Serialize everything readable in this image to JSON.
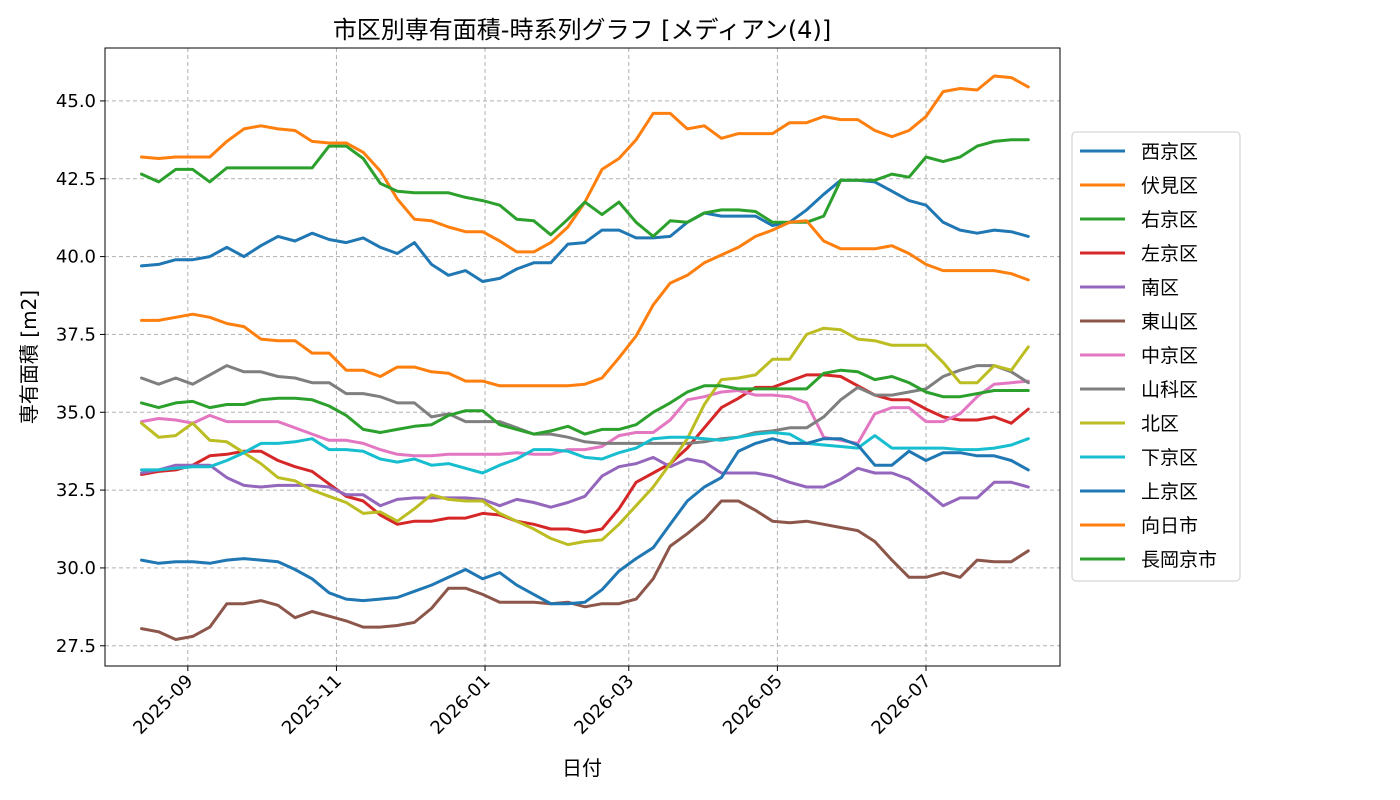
{
  "chart_data": {
    "type": "line",
    "title": "市区別専有面積-時系列グラフ [メディアン(4)]",
    "xlabel": "日付",
    "ylabel": "専有面積 [m2]",
    "ylim": [
      26.85,
      46.7
    ],
    "xlim": [
      "2025-07-29",
      "2026-08-25"
    ],
    "yticks": [
      27.5,
      30.0,
      32.5,
      35.0,
      37.5,
      40.0,
      42.5,
      45.0
    ],
    "ytick_labels": [
      "27.5",
      "30.0",
      "32.5",
      "35.0",
      "37.5",
      "40.0",
      "42.5",
      "45.0"
    ],
    "xticks": [
      "2025-09-01",
      "2025-11-01",
      "2026-01-01",
      "2026-03-01",
      "2026-05-01",
      "2026-07-01"
    ],
    "xtick_labels": [
      "2025-09",
      "2025-11",
      "2026-01",
      "2026-03",
      "2026-05",
      "2026-07"
    ],
    "grid": true,
    "legend_position": "outside-right",
    "x": [
      "2025-08-13",
      "2025-08-20",
      "2025-08-27",
      "2025-09-03",
      "2025-09-10",
      "2025-09-17",
      "2025-09-24",
      "2025-10-01",
      "2025-10-08",
      "2025-10-15",
      "2025-10-22",
      "2025-10-29",
      "2025-11-05",
      "2025-11-12",
      "2025-11-19",
      "2025-11-26",
      "2025-12-03",
      "2025-12-10",
      "2025-12-17",
      "2025-12-24",
      "2025-12-31",
      "2026-01-07",
      "2026-01-14",
      "2026-01-21",
      "2026-01-28",
      "2026-02-04",
      "2026-02-11",
      "2026-02-18",
      "2026-02-25",
      "2026-03-04",
      "2026-03-11",
      "2026-03-18",
      "2026-03-25",
      "2026-04-01",
      "2026-04-08",
      "2026-04-15",
      "2026-04-22",
      "2026-04-29",
      "2026-05-06",
      "2026-05-13",
      "2026-05-20",
      "2026-05-27",
      "2026-06-03",
      "2026-06-10",
      "2026-06-17",
      "2026-06-24",
      "2026-07-01",
      "2026-07-08",
      "2026-07-15",
      "2026-07-22",
      "2026-07-29",
      "2026-08-05",
      "2026-08-12"
    ],
    "series": [
      {
        "name": "西京区",
        "color": "#1f77b4",
        "values": [
          39.7,
          39.75,
          39.9,
          39.9,
          40.0,
          40.3,
          40.0,
          40.35,
          40.65,
          40.5,
          40.75,
          40.55,
          40.45,
          40.6,
          40.3,
          40.1,
          40.45,
          39.75,
          39.4,
          39.55,
          39.2,
          39.3,
          39.6,
          39.8,
          39.8,
          40.4,
          40.45,
          40.85,
          40.85,
          40.6,
          40.6,
          40.65,
          41.1,
          41.4,
          41.3,
          41.3,
          41.3,
          41.0,
          41.1,
          41.5,
          42.0,
          42.45,
          42.45,
          42.4,
          42.1,
          41.8,
          41.65,
          41.1,
          40.85,
          40.75,
          40.85,
          40.8,
          40.65
        ]
      },
      {
        "name": "伏見区",
        "color": "#ff7f0e",
        "values": [
          43.2,
          43.15,
          43.2,
          43.2,
          43.2,
          43.7,
          44.1,
          44.2,
          44.1,
          44.05,
          43.7,
          43.65,
          43.65,
          43.35,
          42.75,
          41.85,
          41.2,
          41.15,
          40.95,
          40.8,
          40.8,
          40.5,
          40.15,
          40.15,
          40.45,
          40.95,
          41.75,
          42.8,
          43.15,
          43.75,
          44.6,
          44.6,
          44.1,
          44.2,
          43.8,
          43.95,
          43.95,
          43.95,
          44.3,
          44.3,
          44.5,
          44.4,
          44.4,
          44.05,
          43.85,
          44.05,
          44.5,
          45.3,
          45.4,
          45.35,
          45.8,
          45.75,
          45.45
        ]
      },
      {
        "name": "右京区",
        "color": "#2ca02c",
        "values": [
          42.65,
          42.4,
          42.8,
          42.8,
          42.4,
          42.85,
          42.85,
          42.85,
          42.85,
          42.85,
          42.85,
          43.55,
          43.55,
          43.15,
          42.35,
          42.1,
          42.05,
          42.05,
          42.05,
          41.9,
          41.8,
          41.65,
          41.2,
          41.15,
          40.7,
          41.2,
          41.75,
          41.35,
          41.75,
          41.1,
          40.65,
          41.15,
          41.1,
          41.4,
          41.5,
          41.5,
          41.45,
          41.1,
          41.1,
          41.1,
          41.3,
          42.45,
          42.45,
          42.45,
          42.65,
          42.55,
          43.2,
          43.05,
          43.2,
          43.55,
          43.7,
          43.75,
          43.75
        ]
      },
      {
        "name": "左京区",
        "color": "#d62728",
        "values": [
          33.0,
          33.1,
          33.15,
          33.3,
          33.6,
          33.65,
          33.75,
          33.75,
          33.45,
          33.25,
          33.1,
          32.7,
          32.3,
          32.15,
          31.7,
          31.4,
          31.5,
          31.5,
          31.6,
          31.6,
          31.75,
          31.7,
          31.5,
          31.4,
          31.25,
          31.25,
          31.15,
          31.25,
          31.9,
          32.75,
          33.05,
          33.35,
          33.85,
          34.5,
          35.15,
          35.45,
          35.8,
          35.8,
          36.0,
          36.2,
          36.2,
          36.15,
          35.85,
          35.55,
          35.4,
          35.4,
          35.1,
          34.85,
          34.75,
          34.75,
          34.85,
          34.65,
          35.1
        ]
      },
      {
        "name": "南区",
        "color": "#9467bd",
        "values": [
          33.05,
          33.15,
          33.3,
          33.3,
          33.3,
          32.9,
          32.65,
          32.6,
          32.65,
          32.65,
          32.65,
          32.6,
          32.35,
          32.35,
          32.0,
          32.2,
          32.25,
          32.25,
          32.25,
          32.25,
          32.2,
          32.0,
          32.2,
          32.1,
          31.95,
          32.1,
          32.3,
          32.95,
          33.25,
          33.35,
          33.55,
          33.25,
          33.5,
          33.4,
          33.05,
          33.05,
          33.05,
          32.95,
          32.75,
          32.6,
          32.6,
          32.85,
          33.2,
          33.05,
          33.05,
          32.85,
          32.45,
          32.0,
          32.25,
          32.25,
          32.75,
          32.75,
          32.6
        ]
      },
      {
        "name": "東山区",
        "color": "#8c564b",
        "values": [
          28.05,
          27.95,
          27.7,
          27.8,
          28.1,
          28.85,
          28.85,
          28.95,
          28.8,
          28.4,
          28.6,
          28.45,
          28.3,
          28.1,
          28.1,
          28.15,
          28.25,
          28.7,
          29.35,
          29.35,
          29.15,
          28.9,
          28.9,
          28.9,
          28.85,
          28.9,
          28.75,
          28.85,
          28.85,
          29.0,
          29.65,
          30.7,
          31.1,
          31.55,
          32.15,
          32.15,
          31.85,
          31.5,
          31.45,
          31.5,
          31.4,
          31.3,
          31.2,
          30.85,
          30.25,
          29.7,
          29.7,
          29.85,
          29.7,
          30.25,
          30.2,
          30.2,
          30.55
        ]
      },
      {
        "name": "中京区",
        "color": "#e377c2",
        "values": [
          34.7,
          34.8,
          34.75,
          34.65,
          34.9,
          34.7,
          34.7,
          34.7,
          34.7,
          34.5,
          34.3,
          34.1,
          34.1,
          34.0,
          33.8,
          33.65,
          33.6,
          33.6,
          33.65,
          33.65,
          33.65,
          33.65,
          33.7,
          33.65,
          33.65,
          33.8,
          33.8,
          33.9,
          34.25,
          34.35,
          34.35,
          34.75,
          35.4,
          35.5,
          35.65,
          35.7,
          35.55,
          35.55,
          35.5,
          35.3,
          34.2,
          34.1,
          34.0,
          34.95,
          35.15,
          35.15,
          34.7,
          34.7,
          34.95,
          35.5,
          35.9,
          35.95,
          36.0
        ]
      },
      {
        "name": "山科区",
        "color": "#7f7f7f",
        "values": [
          36.1,
          35.9,
          36.1,
          35.9,
          36.2,
          36.5,
          36.3,
          36.3,
          36.15,
          36.1,
          35.95,
          35.95,
          35.6,
          35.6,
          35.5,
          35.3,
          35.3,
          34.85,
          34.95,
          34.7,
          34.7,
          34.7,
          34.5,
          34.3,
          34.3,
          34.2,
          34.05,
          34.0,
          34.0,
          34.0,
          34.0,
          34.0,
          34.0,
          34.05,
          34.15,
          34.2,
          34.35,
          34.4,
          34.5,
          34.5,
          34.85,
          35.4,
          35.8,
          35.55,
          35.55,
          35.65,
          35.75,
          36.15,
          36.35,
          36.5,
          36.5,
          36.3,
          35.95
        ]
      },
      {
        "name": "北区",
        "color": "#bcbd22",
        "values": [
          34.65,
          34.2,
          34.25,
          34.65,
          34.1,
          34.05,
          33.7,
          33.35,
          32.9,
          32.8,
          32.5,
          32.3,
          32.1,
          31.75,
          31.8,
          31.5,
          31.9,
          32.35,
          32.2,
          32.15,
          32.15,
          31.75,
          31.5,
          31.25,
          30.95,
          30.75,
          30.85,
          30.9,
          31.4,
          32.0,
          32.6,
          33.35,
          34.15,
          35.25,
          36.05,
          36.1,
          36.2,
          36.7,
          36.7,
          37.5,
          37.7,
          37.65,
          37.35,
          37.3,
          37.15,
          37.15,
          37.15,
          36.6,
          35.95,
          35.95,
          36.5,
          36.35,
          37.1
        ]
      },
      {
        "name": "下京区",
        "color": "#17becf",
        "values": [
          33.15,
          33.15,
          33.2,
          33.25,
          33.25,
          33.45,
          33.7,
          34.0,
          34.0,
          34.05,
          34.15,
          33.8,
          33.8,
          33.75,
          33.5,
          33.4,
          33.5,
          33.3,
          33.35,
          33.2,
          33.05,
          33.3,
          33.5,
          33.8,
          33.8,
          33.75,
          33.55,
          33.5,
          33.7,
          33.85,
          34.15,
          34.2,
          34.2,
          34.15,
          34.1,
          34.2,
          34.3,
          34.35,
          34.3,
          34.0,
          33.95,
          33.9,
          33.85,
          34.25,
          33.85,
          33.85,
          33.85,
          33.85,
          33.8,
          33.8,
          33.85,
          33.95,
          34.15
        ]
      },
      {
        "name": "上京区",
        "color": "#1f77b4",
        "values": [
          30.25,
          30.15,
          30.2,
          30.2,
          30.15,
          30.25,
          30.3,
          30.25,
          30.2,
          29.95,
          29.65,
          29.2,
          29.0,
          28.95,
          29.0,
          29.05,
          29.25,
          29.45,
          29.7,
          29.95,
          29.65,
          29.85,
          29.45,
          29.15,
          28.85,
          28.85,
          28.9,
          29.3,
          29.9,
          30.3,
          30.65,
          31.4,
          32.15,
          32.6,
          32.9,
          33.75,
          34.0,
          34.15,
          34.0,
          34.0,
          34.15,
          34.15,
          33.95,
          33.3,
          33.3,
          33.75,
          33.45,
          33.7,
          33.7,
          33.6,
          33.6,
          33.45,
          33.15
        ]
      },
      {
        "name": "向日市",
        "color": "#ff7f0e",
        "values": [
          37.95,
          37.95,
          38.05,
          38.15,
          38.05,
          37.85,
          37.75,
          37.35,
          37.3,
          37.3,
          36.9,
          36.9,
          36.35,
          36.35,
          36.15,
          36.45,
          36.45,
          36.3,
          36.25,
          36.0,
          36.0,
          35.85,
          35.85,
          35.85,
          35.85,
          35.85,
          35.9,
          36.1,
          36.75,
          37.45,
          38.45,
          39.15,
          39.4,
          39.8,
          40.05,
          40.3,
          40.65,
          40.85,
          41.1,
          41.15,
          40.5,
          40.25,
          40.25,
          40.25,
          40.35,
          40.1,
          39.75,
          39.55,
          39.55,
          39.55,
          39.55,
          39.45,
          39.25
        ]
      },
      {
        "name": "長岡京市",
        "color": "#2ca02c",
        "values": [
          35.3,
          35.15,
          35.3,
          35.35,
          35.15,
          35.25,
          35.25,
          35.4,
          35.45,
          35.45,
          35.4,
          35.2,
          34.9,
          34.45,
          34.35,
          34.45,
          34.55,
          34.6,
          34.9,
          35.05,
          35.05,
          34.6,
          34.45,
          34.3,
          34.4,
          34.55,
          34.3,
          34.45,
          34.45,
          34.6,
          35.0,
          35.3,
          35.65,
          35.85,
          35.85,
          35.75,
          35.75,
          35.75,
          35.75,
          35.75,
          36.25,
          36.35,
          36.3,
          36.05,
          36.15,
          35.95,
          35.65,
          35.5,
          35.5,
          35.6,
          35.7,
          35.7,
          35.7
        ]
      }
    ]
  }
}
